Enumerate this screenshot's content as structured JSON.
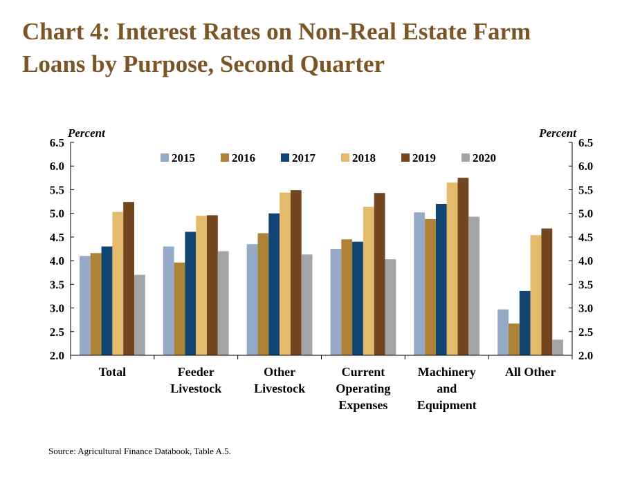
{
  "title_lines": [
    "Chart 4: Interest Rates on Non-Real Estate Farm",
    "Loans by Purpose, Second Quarter"
  ],
  "source": "Source: Agricultural Finance Databook, Table A.5.",
  "colors": {
    "title": "#7b5526",
    "2015": "#94aac6",
    "2016": "#ae8338",
    "2017": "#0f4570",
    "2018": "#e4bb6c",
    "2019": "#73461f",
    "2020": "#a3a5a7"
  },
  "chart_data": {
    "type": "bar",
    "left_axis_label": "Percent",
    "right_axis_label": "Percent",
    "ylim": [
      2.0,
      6.5
    ],
    "yticks": [
      "2.0",
      "2.5",
      "3.0",
      "3.5",
      "4.0",
      "4.5",
      "5.0",
      "5.5",
      "6.0",
      "6.5"
    ],
    "grid": false,
    "legend_position": "top",
    "categories": [
      [
        "Total"
      ],
      [
        "Feeder",
        "Livestock"
      ],
      [
        "Other",
        "Livestock"
      ],
      [
        "Current",
        "Operating",
        "Expenses"
      ],
      [
        "Machinery",
        "and",
        "Equipment"
      ],
      [
        "All Other"
      ]
    ],
    "series": [
      {
        "name": "2015",
        "values": [
          4.1,
          4.3,
          4.35,
          4.25,
          5.02,
          2.97
        ]
      },
      {
        "name": "2016",
        "values": [
          4.16,
          3.96,
          4.58,
          4.45,
          4.88,
          2.67
        ]
      },
      {
        "name": "2017",
        "values": [
          4.3,
          4.61,
          5.0,
          4.4,
          5.2,
          3.36
        ]
      },
      {
        "name": "2018",
        "values": [
          5.03,
          4.95,
          5.44,
          5.14,
          5.65,
          4.54
        ]
      },
      {
        "name": "2019",
        "values": [
          5.24,
          4.96,
          5.49,
          5.43,
          5.75,
          4.68
        ]
      },
      {
        "name": "2020",
        "values": [
          3.7,
          4.2,
          4.13,
          4.03,
          4.93,
          2.33
        ]
      }
    ]
  }
}
